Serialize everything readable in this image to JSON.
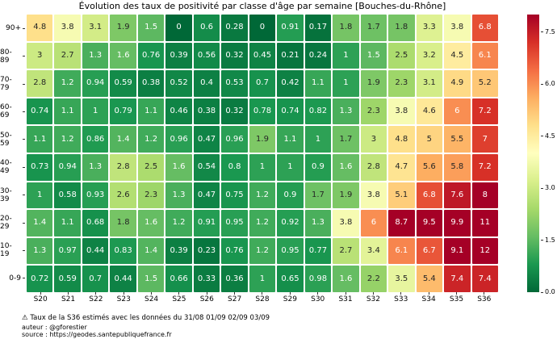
{
  "chart_data": {
    "type": "heatmap",
    "title": "Évolution des taux de positivité par classe d'âge par semaine [Bouches-du-Rhône]",
    "rows": [
      "90+",
      "80-89",
      "70-79",
      "60-69",
      "50-59",
      "40-49",
      "30-39",
      "20-29",
      "10-19",
      "0-9"
    ],
    "columns": [
      "S20",
      "S21",
      "S22",
      "S23",
      "S24",
      "S25",
      "S26",
      "S27",
      "S28",
      "S29",
      "S30",
      "S31",
      "S32",
      "S33",
      "S34",
      "S35",
      "S36"
    ],
    "values": [
      [
        "4.8",
        "3.8",
        "3.1",
        "1.9",
        "1.5",
        "0",
        "0.6",
        "0.28",
        "0",
        "0.91",
        "0.17",
        "1.8",
        "1.7",
        "1.8",
        "3.3",
        "3.8",
        "6.8"
      ],
      [
        "3",
        "2.7",
        "1.3",
        "1.6",
        "0.76",
        "0.39",
        "0.56",
        "0.32",
        "0.45",
        "0.21",
        "0.24",
        "1",
        "1.5",
        "2.5",
        "3.2",
        "4.5",
        "6.1"
      ],
      [
        "2.8",
        "1.2",
        "0.94",
        "0.59",
        "0.38",
        "0.52",
        "0.4",
        "0.53",
        "0.7",
        "0.42",
        "1.1",
        "1",
        "1.9",
        "2.3",
        "3.1",
        "4.9",
        "5.2"
      ],
      [
        "0.74",
        "1.1",
        "1",
        "0.79",
        "1.1",
        "0.46",
        "0.38",
        "0.32",
        "0.78",
        "0.74",
        "0.82",
        "1.3",
        "2.3",
        "3.8",
        "4.6",
        "6",
        "7.2"
      ],
      [
        "1.1",
        "1.2",
        "0.86",
        "1.4",
        "1.2",
        "0.96",
        "0.47",
        "0.96",
        "1.9",
        "1.1",
        "1",
        "1.7",
        "3",
        "4.8",
        "5",
        "5.5",
        "7"
      ],
      [
        "0.73",
        "0.94",
        "1.3",
        "2.8",
        "2.5",
        "1.6",
        "0.54",
        "0.8",
        "1",
        "1",
        "0.9",
        "1.6",
        "2.8",
        "4.7",
        "5.6",
        "5.8",
        "7.2"
      ],
      [
        "1",
        "0.58",
        "0.93",
        "2.6",
        "2.3",
        "1.3",
        "0.47",
        "0.75",
        "1.2",
        "0.9",
        "1.7",
        "1.9",
        "3.8",
        "5.1",
        "6.8",
        "7.6",
        "8"
      ],
      [
        "1.4",
        "1.1",
        "0.68",
        "1.8",
        "1.6",
        "1.2",
        "0.91",
        "0.95",
        "1.2",
        "0.92",
        "1.3",
        "3.8",
        "6",
        "8.7",
        "9.5",
        "9.9",
        "11"
      ],
      [
        "1.3",
        "0.97",
        "0.44",
        "0.83",
        "1.4",
        "0.39",
        "0.23",
        "0.76",
        "1.2",
        "0.95",
        "0.77",
        "2.7",
        "3.4",
        "6.1",
        "6.7",
        "9.1",
        "12"
      ],
      [
        "0.72",
        "0.59",
        "0.7",
        "0.44",
        "1.5",
        "0.66",
        "0.33",
        "0.36",
        "1",
        "0.65",
        "0.98",
        "1.6",
        "2.2",
        "3.5",
        "5.4",
        "7.4",
        "7.4"
      ]
    ],
    "vmin": 0,
    "vmax": 8,
    "colormap": "RdYlGn_r",
    "colormap_stops_low_to_high": [
      "#006837",
      "#1a9850",
      "#66bd63",
      "#a6d96a",
      "#d9ef8b",
      "#ffffbf",
      "#fee08b",
      "#fdae61",
      "#f46d43",
      "#d73027",
      "#a50026"
    ],
    "cell_text_dark": "#262626",
    "cell_text_light": "#ffffff",
    "colorbar_ticks": [
      "0.0",
      "1.5",
      "3.0",
      "4.5",
      "6.0",
      "7.5"
    ],
    "legend_position": "right",
    "grid": "white 2px cell separators"
  },
  "footer": {
    "note": "⚠ Taux de la S36 estimés avec les données du 31/08 01/09 02/09 03/09",
    "author": "auteur : @gforestier",
    "source": "source : https://geodes.santepubliquefrance.fr"
  }
}
